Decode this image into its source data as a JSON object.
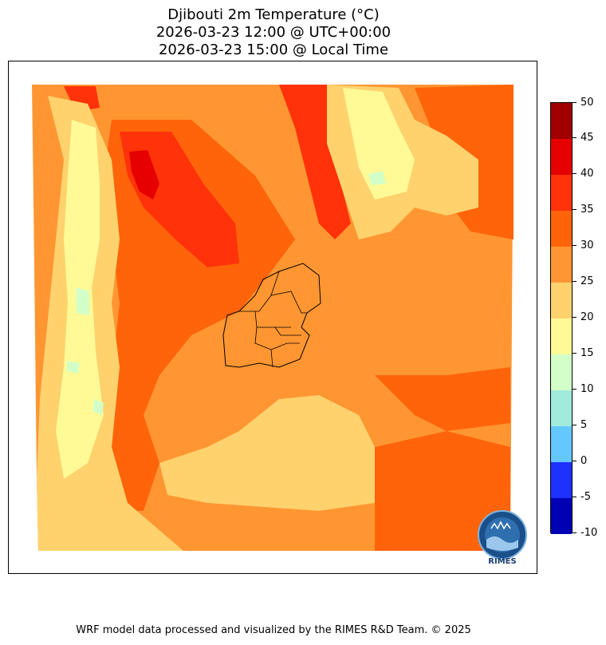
{
  "title": {
    "line1": "Djibouti 2m Temperature (°C)",
    "line2": "2026-03-23 12:00 @ UTC+00:00",
    "line3": "2026-03-23 15:00 @ Local Time"
  },
  "colorbar": {
    "ticks": [
      "-10",
      "-5",
      "0",
      "5",
      "10",
      "15",
      "20",
      "25",
      "30",
      "35",
      "40",
      "45",
      "50"
    ],
    "colors": [
      "#0000b4",
      "#1e32ff",
      "#64c8ff",
      "#a0ebdc",
      "#d2ffc8",
      "#fffa96",
      "#ffd26e",
      "#ff9632",
      "#ff640a",
      "#ff320a",
      "#e60000",
      "#a00000"
    ]
  },
  "map": {
    "palette": {
      "t15_20": "#fffa96",
      "t10_15": "#d2ffc8",
      "t20_25": "#ffd26e",
      "t25_30": "#ff9632",
      "t30_35": "#ff640a",
      "t35_40": "#ff320a",
      "t40_45": "#e60000",
      "border": "#000000"
    }
  },
  "logo": {
    "text": "RIMES"
  },
  "footer": {
    "credit": "WRF model data processed and visualized by the RIMES R&D Team. © 2025"
  }
}
